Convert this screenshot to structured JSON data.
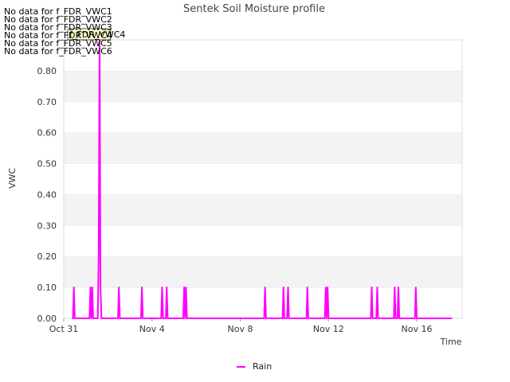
{
  "chart_data": {
    "type": "line",
    "title": "Sentek Soil Moisture profile",
    "xlabel": "Time",
    "ylabel": "VWC",
    "ylim": [
      0,
      0.9
    ],
    "y_ticks": [
      "0.00",
      "0.10",
      "0.20",
      "0.30",
      "0.40",
      "0.50",
      "0.60",
      "0.70",
      "0.80"
    ],
    "x_ticks": [
      "Oct 31",
      "Nov 4",
      "Nov 8",
      "Nov 12",
      "Nov 16"
    ],
    "x_start": "Oct 31",
    "x_end": "Nov 18",
    "grid": "horizontal-bands",
    "legend_position": "bottom",
    "no_data_messages": [
      "No data for f_FDR_VWC1",
      "No data for f_FDR_VWC2",
      "No data for f_FDR_VWC3",
      "No data for f_FDR_VWC4",
      "No data for f_FDR_VWC5",
      "No data for f_FDR_VWC6"
    ],
    "tooltip_label": "f_FDR_VWC4",
    "series": [
      {
        "name": "Rain",
        "color": "#ff00ff",
        "x": [
          "Oct 31 09:00",
          "Oct 31 10:00",
          "Oct 31 11:00",
          "Oct 31 12:00",
          "Nov 1 04:00",
          "Nov 1 05:00",
          "Nov 1 06:00",
          "Nov 1 07:00",
          "Nov 1 08:00",
          "Nov 1 13:00",
          "Nov 1 14:00",
          "Nov 1 15:00",
          "Nov 1 16:00",
          "Nov 1 17:00",
          "Nov 2 11:00",
          "Nov 2 12:00",
          "Nov 2 13:00",
          "Nov 3 12:00",
          "Nov 3 13:00",
          "Nov 3 14:00",
          "Nov 4 10:00",
          "Nov 4 11:00",
          "Nov 4 12:00",
          "Nov 4 15:00",
          "Nov 4 16:00",
          "Nov 4 17:00",
          "Nov 5 10:00",
          "Nov 5 11:00",
          "Nov 5 12:00",
          "Nov 5 13:00",
          "Nov 5 14:00",
          "Nov 9 02:00",
          "Nov 9 03:00",
          "Nov 9 04:00",
          "Nov 9 22:00",
          "Nov 9 23:00",
          "Nov 10 00:00",
          "Nov 10 03:00",
          "Nov 10 04:00",
          "Nov 10 05:00",
          "Nov 11 00:00",
          "Nov 11 01:00",
          "Nov 11 02:00",
          "Nov 11 20:00",
          "Nov 11 21:00",
          "Nov 11 22:00",
          "Nov 11 23:00",
          "Nov 12 00:00",
          "Nov 13 22:00",
          "Nov 13 23:00",
          "Nov 14 00:00",
          "Nov 14 04:00",
          "Nov 14 05:00",
          "Nov 14 06:00",
          "Nov 14 23:00",
          "Nov 15 00:00",
          "Nov 15 01:00",
          "Nov 15 03:00",
          "Nov 15 04:00",
          "Nov 15 05:00",
          "Nov 15 22:00",
          "Nov 15 23:00",
          "Nov 16 00:00",
          "Nov 17 14:00"
        ],
        "values": [
          0,
          0,
          0.1,
          0,
          0,
          0.1,
          0,
          0.1,
          0,
          0,
          0.2,
          0.9,
          0.1,
          0,
          0,
          0.1,
          0,
          0,
          0.1,
          0,
          0,
          0.1,
          0,
          0,
          0.1,
          0,
          0,
          0.1,
          0,
          0.1,
          0,
          0,
          0.1,
          0,
          0,
          0.1,
          0,
          0,
          0.1,
          0,
          0,
          0.1,
          0,
          0,
          0.1,
          0,
          0.1,
          0,
          0,
          0.1,
          0,
          0,
          0.1,
          0,
          0,
          0.1,
          0,
          0,
          0.1,
          0,
          0,
          0.1,
          0,
          0
        ]
      }
    ]
  }
}
